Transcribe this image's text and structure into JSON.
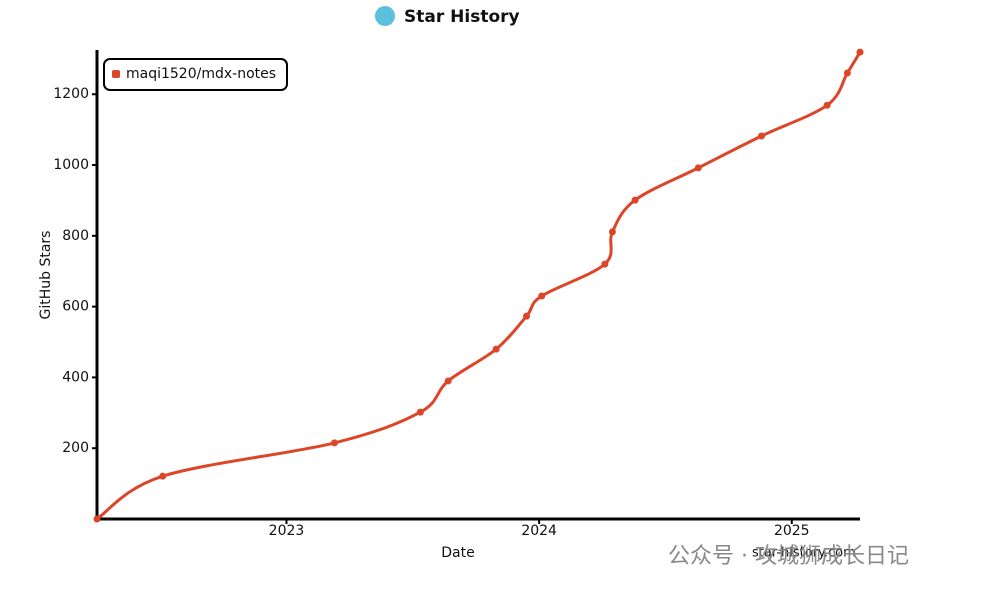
{
  "chart_data": {
    "type": "line",
    "title": "Star History",
    "x_label": "Date",
    "y_label": "GitHub Stars",
    "x": [
      2022.25,
      2022.51,
      2023.19,
      2023.53,
      2023.64,
      2023.83,
      2023.95,
      2024.01,
      2024.26,
      2024.29,
      2024.38,
      2024.63,
      2024.88,
      2025.14,
      2025.22,
      2025.27
    ],
    "series": [
      {
        "name": "maqi1520/mdx-notes",
        "color": "#dd4528",
        "values": [
          0,
          121,
          215,
          302,
          390,
          480,
          573,
          630,
          720,
          811,
          901,
          992,
          1082,
          1169,
          1260,
          1319
        ]
      }
    ],
    "xlim": [
      2022.25,
      2025.27
    ],
    "xticks": [
      2023,
      2024,
      2025
    ],
    "ylim": [
      0,
      1325
    ],
    "yticks": [
      200,
      400,
      600,
      800,
      1000,
      1200
    ],
    "legend": "top-left",
    "watermark": "star-history.com"
  },
  "overlay": {
    "text": "公众号 · 攻城狮成长日记"
  }
}
